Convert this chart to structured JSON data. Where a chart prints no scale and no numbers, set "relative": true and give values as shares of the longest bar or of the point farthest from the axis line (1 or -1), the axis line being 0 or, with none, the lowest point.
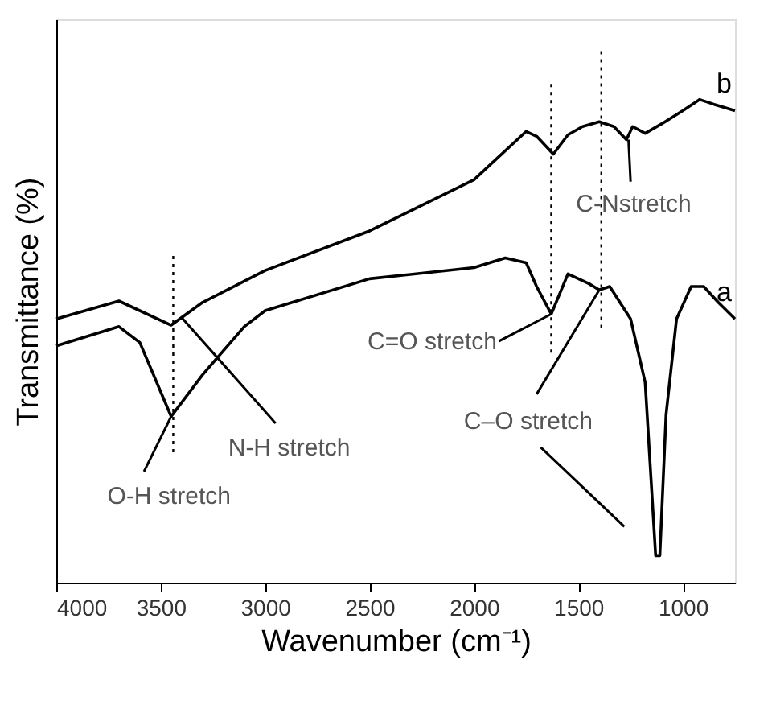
{
  "chart_data": {
    "type": "line",
    "relative": true,
    "xlabel": "Wavenumber (cm⁻¹)",
    "ylabel": "Transmittance (%)",
    "xlim": [
      4000,
      750
    ],
    "xticks": [
      4000,
      3500,
      3000,
      2500,
      2000,
      1500,
      1000
    ],
    "grid": false,
    "marker": "none",
    "line_style": "solid",
    "series": [
      {
        "name": "b",
        "color": "#000000",
        "x": [
          4000,
          3700,
          3450,
          3300,
          3000,
          2500,
          2000,
          1750,
          1700,
          1620,
          1550,
          1480,
          1400,
          1330,
          1270,
          1240,
          1180,
          1100,
          1000,
          920,
          850,
          750
        ],
        "values": [
          0.546,
          0.583,
          0.533,
          0.58,
          0.646,
          0.728,
          0.834,
          0.934,
          0.924,
          0.887,
          0.927,
          0.944,
          0.954,
          0.944,
          0.917,
          0.944,
          0.93,
          0.95,
          0.977,
          1.0,
          0.99,
          0.977
        ]
      },
      {
        "name": "a",
        "color": "#000000",
        "x": [
          4000,
          3700,
          3600,
          3450,
          3300,
          3100,
          3000,
          2500,
          2000,
          1850,
          1750,
          1700,
          1630,
          1550,
          1450,
          1400,
          1350,
          1250,
          1180,
          1130,
          1110,
          1080,
          1030,
          960,
          900,
          830,
          750
        ],
        "values": [
          0.49,
          0.53,
          0.497,
          0.344,
          0.43,
          0.53,
          0.563,
          0.629,
          0.652,
          0.672,
          0.662,
          0.613,
          0.556,
          0.639,
          0.619,
          0.606,
          0.613,
          0.546,
          0.414,
          0.056,
          0.056,
          0.348,
          0.546,
          0.613,
          0.613,
          0.58,
          0.546
        ]
      }
    ],
    "ref_lines": [
      {
        "axis": "x",
        "value": 3440,
        "line_style": "dotted",
        "color": "#000000"
      },
      {
        "axis": "x",
        "value": 1630,
        "line_style": "dotted",
        "color": "#000000"
      },
      {
        "axis": "x",
        "value": 1390,
        "line_style": "dotted",
        "color": "#000000"
      }
    ],
    "annotations": [
      {
        "text": "C-Nstretch",
        "x": 1260,
        "y": 0.917
      },
      {
        "text": "C=O stretch",
        "x": 1630,
        "y": 0.556
      },
      {
        "text": "C–O stretch",
        "x": 1400,
        "y": 0.606
      },
      {
        "text": "N-H stretch",
        "x": 3400,
        "y": 0.549
      },
      {
        "text": "O-H stretch",
        "x": 3450,
        "y": 0.344
      }
    ]
  }
}
